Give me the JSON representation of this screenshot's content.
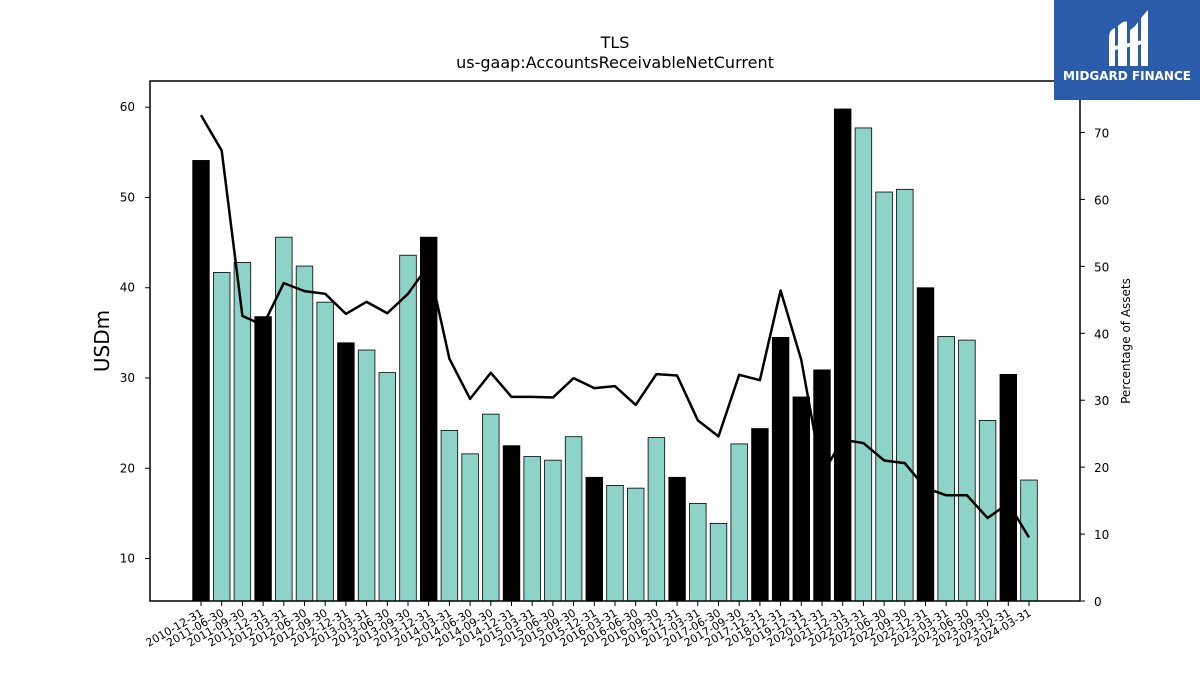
{
  "chart_data": {
    "type": "bar",
    "title": "TLS",
    "subtitle": "us-gaap:AccountsReceivableNetCurrent",
    "ylabel": "USDm",
    "y2label": "Percentage of Assets",
    "ylim": [
      5.3,
      62.9
    ],
    "y2lim": [
      0,
      77.7
    ],
    "yticks": [
      10,
      20,
      30,
      40,
      50,
      60
    ],
    "y2ticks": [
      0,
      10,
      20,
      30,
      40,
      50,
      60,
      70
    ],
    "grid": false,
    "bar_colors": {
      "annual": "#000000",
      "quarterly": "#8dd3c7"
    },
    "line_color": "#000000",
    "categories": [
      "2010-12-31",
      "2011-06-30",
      "2011-09-30",
      "2011-12-31",
      "2012-03-31",
      "2012-06-30",
      "2012-09-30",
      "2012-12-31",
      "2013-03-31",
      "2013-06-30",
      "2013-09-30",
      "2013-12-31",
      "2014-03-31",
      "2014-06-30",
      "2014-09-30",
      "2014-12-31",
      "2015-03-31",
      "2015-06-30",
      "2015-09-30",
      "2015-12-31",
      "2016-03-31",
      "2016-06-30",
      "2016-09-30",
      "2016-12-31",
      "2017-03-31",
      "2017-06-30",
      "2017-09-30",
      "2017-12-31",
      "2018-12-31",
      "2019-12-31",
      "2020-12-31",
      "2021-12-31",
      "2022-03-31",
      "2022-06-30",
      "2022-09-30",
      "2022-12-31",
      "2023-03-31",
      "2023-06-30",
      "2023-09-30",
      "2023-12-31",
      "2024-03-31"
    ],
    "series": [
      {
        "kind": "bar",
        "values": [
          54.1,
          41.7,
          42.8,
          36.8,
          45.6,
          42.4,
          38.4,
          33.9,
          33.1,
          30.6,
          43.6,
          45.6,
          24.2,
          21.6,
          26.0,
          22.5,
          21.3,
          20.9,
          23.5,
          19.0,
          18.1,
          17.8,
          23.4,
          19.0,
          16.1,
          13.9,
          22.7,
          24.4,
          34.5,
          27.9,
          30.9,
          59.8,
          57.7,
          50.6,
          50.9,
          40.0,
          34.6,
          34.2,
          25.3,
          30.4,
          18.7
        ],
        "annual": [
          true,
          false,
          false,
          true,
          false,
          false,
          false,
          true,
          false,
          false,
          false,
          true,
          false,
          false,
          false,
          true,
          false,
          false,
          false,
          true,
          false,
          false,
          false,
          true,
          false,
          false,
          false,
          true,
          true,
          true,
          true,
          true,
          false,
          false,
          false,
          true,
          false,
          false,
          false,
          true,
          false
        ]
      },
      {
        "kind": "line",
        "axis": "right",
        "values": [
          72.6,
          67.3,
          42.6,
          41.2,
          47.5,
          46.3,
          45.9,
          42.9,
          44.7,
          43.0,
          45.9,
          50.2,
          36.2,
          30.2,
          34.1,
          30.5,
          30.5,
          30.4,
          33.3,
          31.8,
          32.1,
          29.3,
          33.9,
          33.7,
          27.0,
          24.6,
          33.8,
          33.0,
          46.4,
          36.0,
          18.9,
          24.1,
          23.6,
          21.0,
          20.6,
          16.9,
          15.8,
          15.8,
          12.4,
          14.6,
          9.5
        ]
      }
    ]
  },
  "logo": {
    "text": "MIDGARD FINANCE",
    "bg": "#2a5caa"
  }
}
